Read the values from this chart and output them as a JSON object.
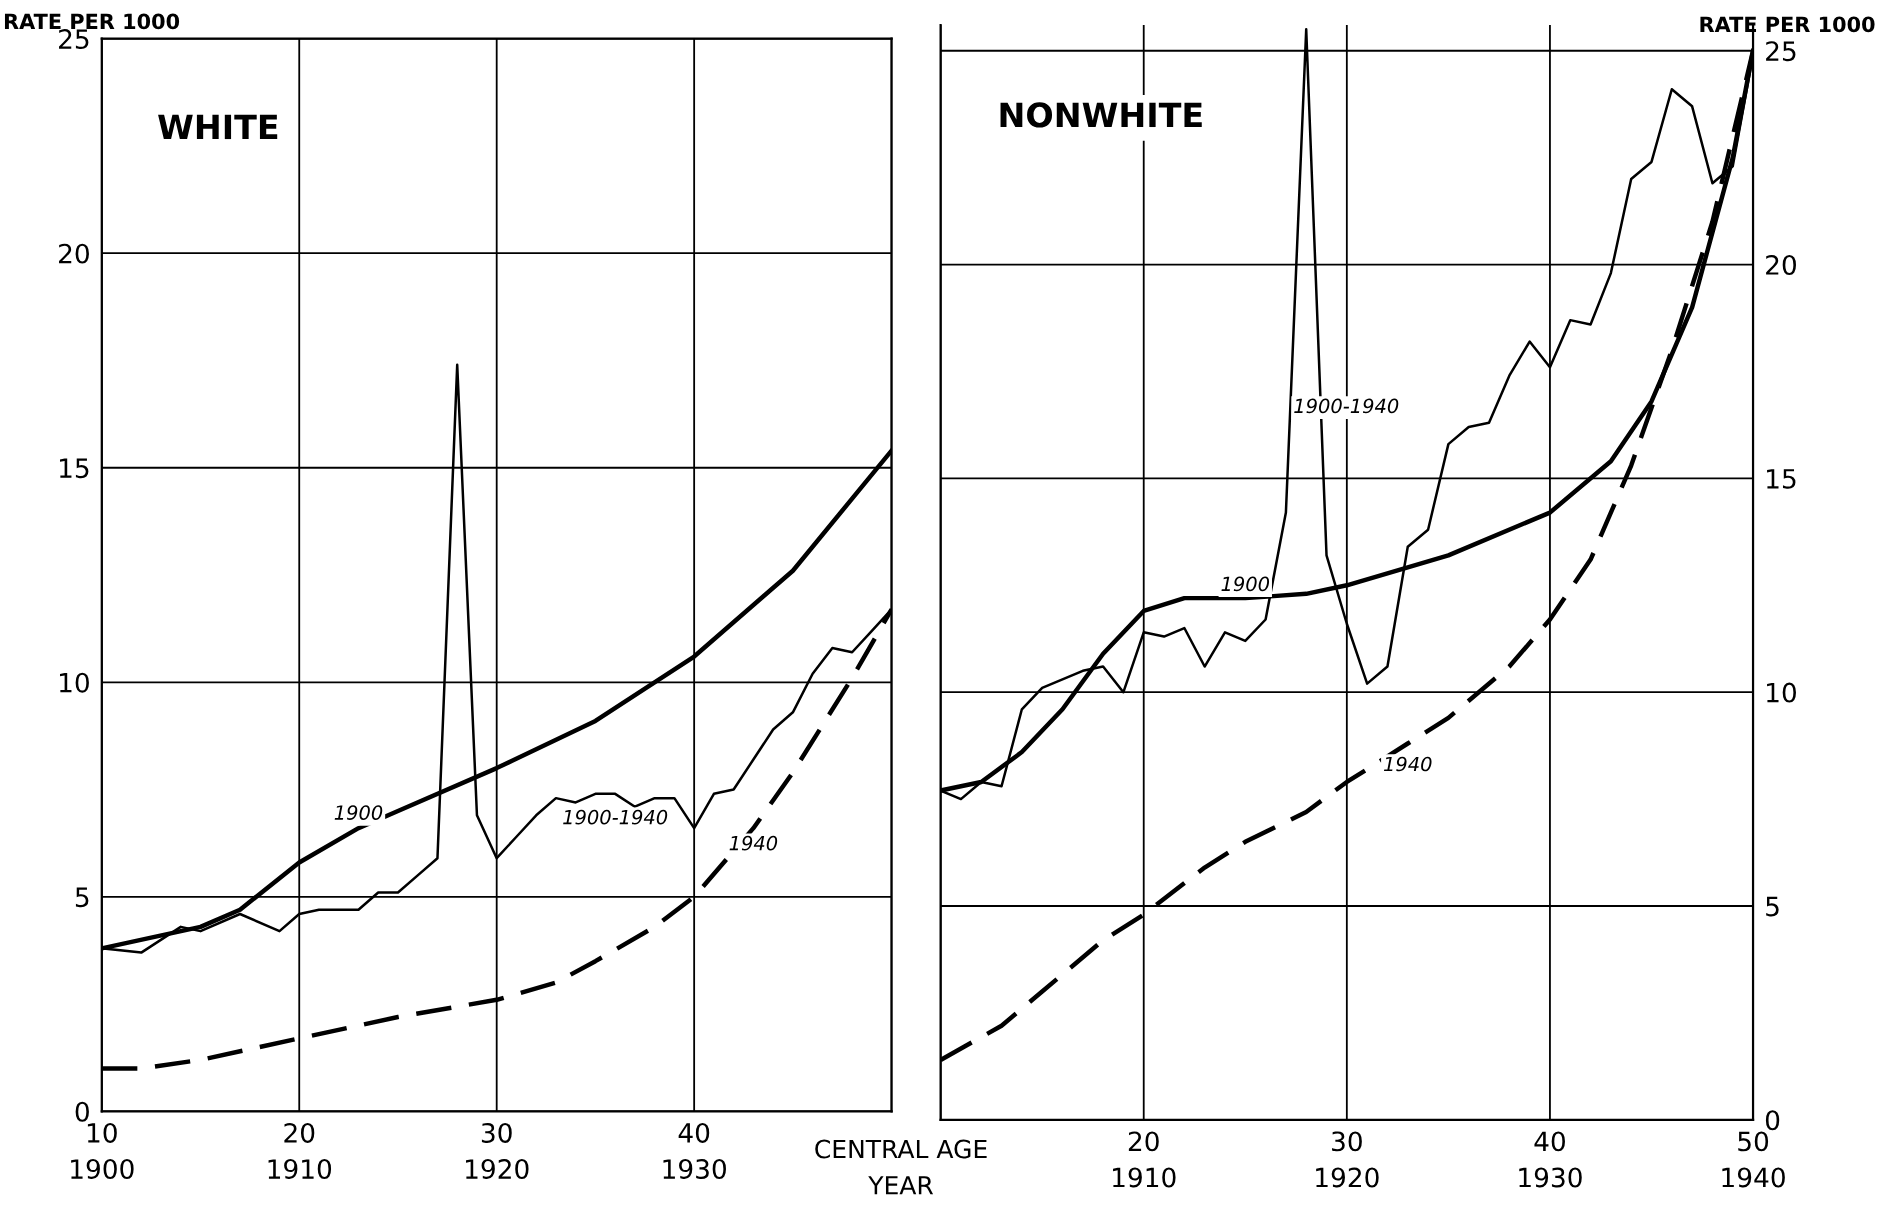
{
  "chart_data": [
    {
      "type": "line",
      "title": "WHITE",
      "ylabel": "RATE PER 1000",
      "xlim": [
        10,
        50
      ],
      "ylim": [
        0,
        25
      ],
      "grid": true,
      "legend": false,
      "xticks": [
        10,
        20,
        30,
        40,
        {
          "value": 50,
          "label": null
        }
      ],
      "x2lim": [
        1900,
        1940
      ],
      "x2ticks": [
        1900,
        1910,
        1920,
        1930
      ],
      "yticks": [
        0,
        5,
        10,
        15,
        20,
        25
      ],
      "annotations": [
        "CENTRAL AGE",
        "YEAR"
      ],
      "series": [
        {
          "name": "1900",
          "color": "#000000",
          "line_style": "solid",
          "x": [
            10,
            15,
            17,
            20,
            23,
            25,
            30,
            35,
            40,
            45,
            50
          ],
          "values": [
            3.8,
            4.3,
            4.7,
            5.8,
            6.6,
            7.0,
            8.0,
            9.1,
            10.6,
            12.6,
            15.4
          ]
        },
        {
          "name": "1900-1940",
          "color": "#000000",
          "line_style": "solid",
          "x": [
            10,
            12,
            14,
            15,
            17,
            19,
            20,
            21,
            23,
            24,
            25,
            26,
            27,
            28,
            29,
            30,
            31,
            32,
            33,
            34,
            35,
            36,
            37,
            38,
            39,
            40,
            41,
            42,
            43,
            44,
            45,
            46,
            47,
            48,
            49,
            50
          ],
          "values": [
            3.8,
            3.7,
            4.3,
            4.2,
            4.6,
            4.2,
            4.6,
            4.7,
            4.7,
            5.1,
            5.1,
            5.5,
            5.9,
            17.4,
            6.9,
            5.9,
            6.4,
            6.9,
            7.3,
            7.2,
            7.4,
            7.4,
            7.1,
            7.3,
            7.3,
            6.6,
            7.4,
            7.5,
            8.2,
            8.9,
            9.3,
            10.2,
            10.8,
            10.7,
            11.2,
            11.7
          ]
        },
        {
          "name": "1940",
          "color": "#000000",
          "line_style": "dashed",
          "x": [
            10,
            12,
            15,
            20,
            25,
            30,
            33,
            35,
            38,
            40,
            43,
            45,
            48,
            50
          ],
          "values": [
            1.0,
            1.0,
            1.2,
            1.7,
            2.2,
            2.6,
            3.0,
            3.5,
            4.3,
            5.0,
            6.6,
            7.9,
            10.1,
            11.7
          ]
        }
      ]
    },
    {
      "type": "line",
      "title": "NONWHITE",
      "ylabel": "RATE PER 1000",
      "xlim": [
        10,
        50
      ],
      "ylim": [
        0,
        25.6
      ],
      "grid": true,
      "legend": false,
      "xticks": [
        {
          "value": 10,
          "label": null
        },
        20,
        30,
        40,
        50
      ],
      "x2lim": [
        1900,
        1940
      ],
      "x2ticks": [
        1910,
        1920,
        1930,
        1940
      ],
      "yticks": [
        0,
        5,
        10,
        15,
        20,
        25
      ],
      "series": [
        {
          "name": "1900",
          "color": "#000000",
          "line_style": "solid",
          "x": [
            10,
            12,
            14,
            16,
            18,
            20,
            22,
            25,
            28,
            30,
            35,
            40,
            43,
            45,
            47,
            49,
            50
          ],
          "values": [
            7.7,
            7.9,
            8.6,
            9.6,
            10.9,
            11.9,
            12.2,
            12.2,
            12.3,
            12.5,
            13.2,
            14.2,
            15.4,
            16.8,
            19.0,
            22.5,
            25.0
          ]
        },
        {
          "name": "1900-1940",
          "color": "#000000",
          "line_style": "solid",
          "x": [
            10,
            11,
            12,
            13,
            14,
            15,
            17,
            18,
            19,
            20,
            21,
            22,
            23,
            24,
            25,
            26,
            27,
            28,
            29,
            30,
            31,
            32,
            33,
            34,
            35,
            36,
            37,
            38,
            39,
            40,
            41,
            42,
            43,
            44,
            45,
            46,
            47,
            48,
            49,
            50
          ],
          "values": [
            7.7,
            7.5,
            7.9,
            7.8,
            9.6,
            10.1,
            10.5,
            10.6,
            10.0,
            11.4,
            11.3,
            11.5,
            10.6,
            11.4,
            11.2,
            11.7,
            14.2,
            25.5,
            13.2,
            11.6,
            10.2,
            10.6,
            13.4,
            13.8,
            15.8,
            16.2,
            16.3,
            17.4,
            18.2,
            17.6,
            18.7,
            18.6,
            19.8,
            22.0,
            22.4,
            24.1,
            23.7,
            21.9,
            22.3,
            24.9
          ]
        },
        {
          "name": "1940",
          "color": "#000000",
          "line_style": "dashed",
          "x": [
            10,
            13,
            15,
            18,
            20,
            23,
            25,
            28,
            30,
            33,
            35,
            38,
            40,
            42,
            44,
            46,
            48,
            50
          ],
          "values": [
            1.4,
            2.2,
            3.0,
            4.2,
            4.8,
            5.9,
            6.5,
            7.2,
            7.9,
            8.8,
            9.4,
            10.6,
            11.7,
            13.1,
            15.3,
            18.0,
            21.0,
            25.0
          ]
        }
      ]
    }
  ]
}
